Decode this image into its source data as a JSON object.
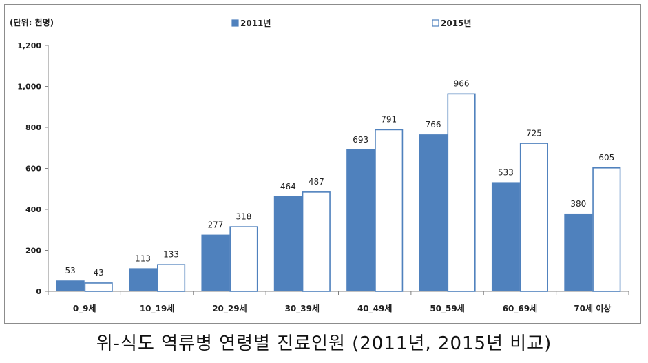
{
  "chart_data": {
    "type": "bar",
    "unit_label": "(단위: 천명)",
    "categories": [
      "0_9세",
      "10_19세",
      "20_29세",
      "30_39세",
      "40_49세",
      "50_59세",
      "60_69세",
      "70세 이상"
    ],
    "series": [
      {
        "name": "2011년",
        "values": [
          53,
          113,
          277,
          464,
          693,
          766,
          533,
          380
        ],
        "color": "#4f81bd"
      },
      {
        "name": "2015년",
        "values": [
          43,
          133,
          318,
          487,
          791,
          966,
          725,
          605
        ],
        "color": "#ffffff",
        "stroke": "#4f81bd"
      }
    ],
    "ylim": [
      0,
      1200
    ],
    "yticks": [
      "0",
      "200",
      "400",
      "600",
      "800",
      "1,000",
      "1,200"
    ],
    "ytick_values": [
      0,
      200,
      400,
      600,
      800,
      1000,
      1200
    ],
    "legend": "top",
    "grid": false
  },
  "caption": "위-식도 역류병 연령별 진료인원 (2011년, 2015년 비교)"
}
